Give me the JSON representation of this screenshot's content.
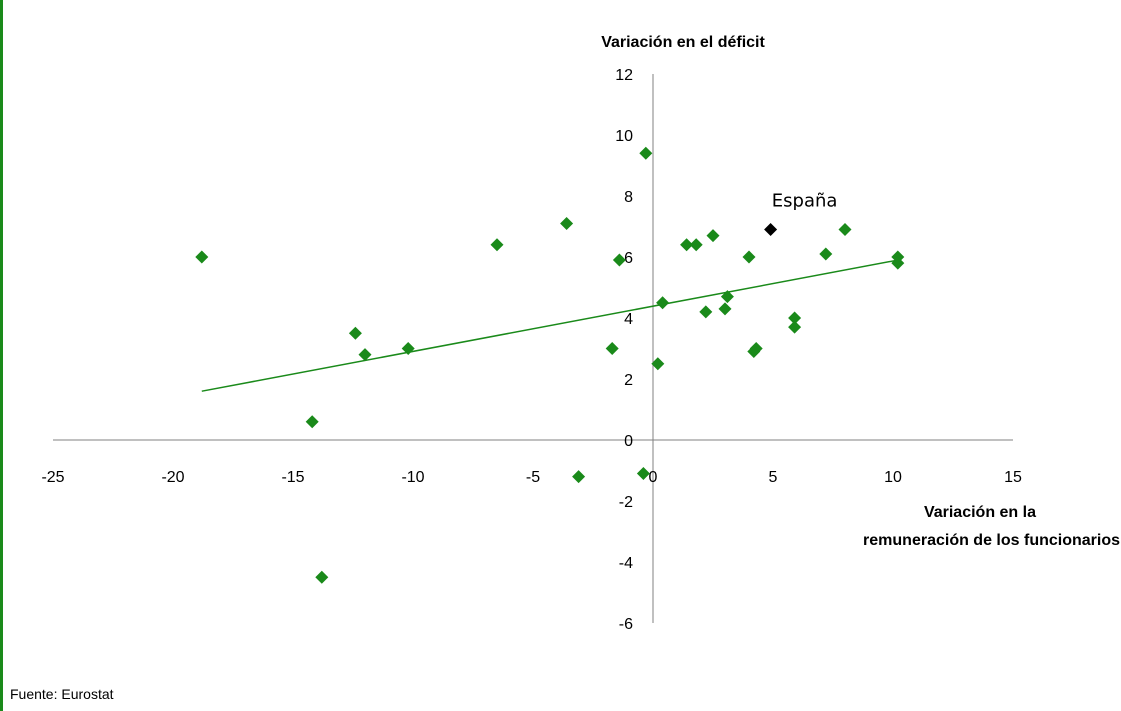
{
  "source_note": "Fuente: Eurostat",
  "colors": {
    "points": "#1a8a1a",
    "highlight": "#000000",
    "trend": "#1a8a1a",
    "axis": "#808080",
    "border": "#1a8a1a"
  },
  "chart_data": {
    "type": "scatter",
    "ylabel": "Variación en el déficit",
    "xlabel_lines": [
      "Variación en la",
      "remuneración de los funcionarios"
    ],
    "xlim": [
      -25,
      15
    ],
    "ylim": [
      -6,
      12
    ],
    "x_ticks": [
      "-25",
      "-20",
      "-15",
      "-10",
      "-5",
      "0",
      "5",
      "10",
      "15"
    ],
    "y_ticks": [
      "12",
      "10",
      "8",
      "6",
      "4",
      "2",
      "0",
      "-2",
      "-4",
      "-6"
    ],
    "x_tick_values": [
      -25,
      -20,
      -15,
      -10,
      -5,
      0,
      5,
      10,
      15
    ],
    "y_tick_values": [
      12,
      10,
      8,
      6,
      4,
      2,
      0,
      -2,
      -4,
      -6
    ],
    "grid": false,
    "points": [
      {
        "x": -18.8,
        "y": 6.0
      },
      {
        "x": -14.2,
        "y": 0.6
      },
      {
        "x": -13.8,
        "y": -4.5
      },
      {
        "x": -12.4,
        "y": 3.5
      },
      {
        "x": -12.0,
        "y": 2.8
      },
      {
        "x": -10.2,
        "y": 3.0
      },
      {
        "x": -6.5,
        "y": 6.4
      },
      {
        "x": -3.6,
        "y": 7.1
      },
      {
        "x": -3.1,
        "y": -1.2
      },
      {
        "x": -1.7,
        "y": 3.0
      },
      {
        "x": -1.4,
        "y": 5.9
      },
      {
        "x": -0.3,
        "y": 9.4
      },
      {
        "x": -0.4,
        "y": -1.1
      },
      {
        "x": 0.2,
        "y": 2.5
      },
      {
        "x": 0.4,
        "y": 4.5
      },
      {
        "x": 1.4,
        "y": 6.4
      },
      {
        "x": 1.8,
        "y": 6.4
      },
      {
        "x": 2.2,
        "y": 4.2
      },
      {
        "x": 2.5,
        "y": 6.7
      },
      {
        "x": 3.0,
        "y": 4.3
      },
      {
        "x": 3.1,
        "y": 4.7
      },
      {
        "x": 4.0,
        "y": 6.0
      },
      {
        "x": 4.2,
        "y": 2.9
      },
      {
        "x": 4.3,
        "y": 3.0
      },
      {
        "x": 5.9,
        "y": 4.0
      },
      {
        "x": 5.9,
        "y": 3.7
      },
      {
        "x": 7.2,
        "y": 6.1
      },
      {
        "x": 8.0,
        "y": 6.9
      },
      {
        "x": 10.2,
        "y": 6.0
      },
      {
        "x": 10.2,
        "y": 5.8
      }
    ],
    "highlight": {
      "label": "España",
      "x": 4.9,
      "y": 6.9
    },
    "trendline": {
      "x": [
        -18.8,
        10.2
      ],
      "y": [
        1.6,
        5.9
      ]
    }
  }
}
